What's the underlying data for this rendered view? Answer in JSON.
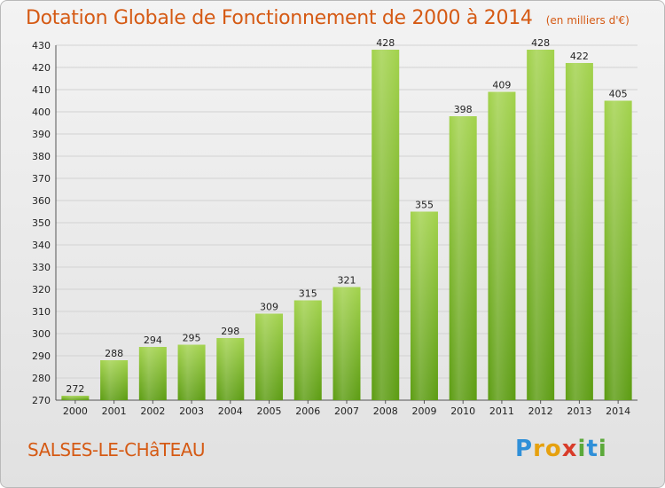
{
  "chart_data": {
    "type": "bar",
    "title": "Dotation Globale de Fonctionnement de 2000 à 2014",
    "unit_note": "(en milliers d'€)",
    "categories": [
      "2000",
      "2001",
      "2002",
      "2003",
      "2004",
      "2005",
      "2006",
      "2007",
      "2008",
      "2009",
      "2010",
      "2011",
      "2012",
      "2013",
      "2014"
    ],
    "values": [
      272,
      288,
      294,
      295,
      298,
      309,
      315,
      321,
      428,
      355,
      398,
      409,
      428,
      422,
      405
    ],
    "ylim": [
      270,
      430
    ],
    "yticks": [
      270,
      280,
      290,
      300,
      310,
      320,
      330,
      340,
      350,
      360,
      370,
      380,
      390,
      400,
      410,
      420,
      430
    ],
    "grid": true,
    "bar_color": "#7ab82a",
    "legend": "none"
  },
  "footer": {
    "commune": "SALSES-LE-CHâTEAU"
  },
  "logo": {
    "letters": [
      {
        "ch": "P",
        "color": "#2f8fd8"
      },
      {
        "ch": "r",
        "color": "#e6a10f"
      },
      {
        "ch": "o",
        "color": "#e6a10f"
      },
      {
        "ch": "x",
        "color": "#d83c2a"
      },
      {
        "ch": "i",
        "color": "#5ba93a"
      },
      {
        "ch": "t",
        "color": "#2f8fd8"
      },
      {
        "ch": "i",
        "color": "#5ba93a"
      }
    ]
  }
}
